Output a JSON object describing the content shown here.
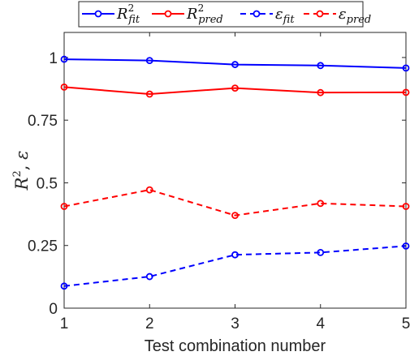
{
  "chart_data": {
    "type": "line",
    "xlabel": "Test combination number",
    "ylabel": "R², ε",
    "x": [
      1,
      2,
      3,
      4,
      5
    ],
    "xlim": [
      1,
      5
    ],
    "ylim": [
      0,
      1.1
    ],
    "xticks": [
      "1",
      "2",
      "3",
      "4",
      "5"
    ],
    "yticks": [
      0,
      0.25,
      0.5,
      0.75,
      1
    ],
    "ytick_labels": [
      "0",
      "0.25",
      "0.5",
      "0.75",
      "1"
    ],
    "grid": false,
    "legend_position": "top",
    "series": [
      {
        "name": "R²_fit",
        "color": "#0000ff",
        "style": "solid",
        "marker": "circle",
        "values": [
          0.993,
          0.988,
          0.972,
          0.968,
          0.958
        ]
      },
      {
        "name": "R²_pred",
        "color": "#ff0000",
        "style": "solid",
        "marker": "circle",
        "values": [
          0.882,
          0.854,
          0.878,
          0.86,
          0.861
        ]
      },
      {
        "name": "ε_fit",
        "color": "#0000ff",
        "style": "dashed",
        "marker": "circle",
        "values": [
          0.088,
          0.126,
          0.213,
          0.222,
          0.248
        ]
      },
      {
        "name": "ε_pred",
        "color": "#ff0000",
        "style": "dashed",
        "marker": "circle",
        "values": [
          0.406,
          0.472,
          0.37,
          0.418,
          0.406
        ]
      }
    ]
  }
}
